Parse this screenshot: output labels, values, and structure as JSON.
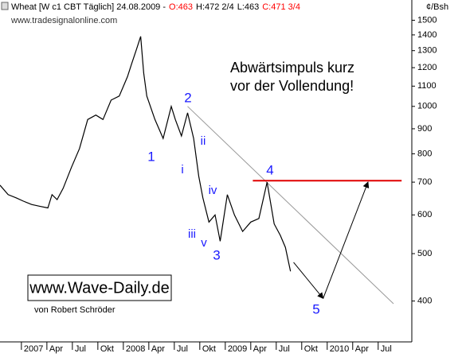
{
  "chart_data": {
    "type": "line",
    "log_scale": true,
    "header": [
      "Wheat [W c1 CBT  Täglich] 24.08.2009 -",
      "O:463",
      "H:472 2/4",
      "L:463",
      "C:471 3/4"
    ],
    "header_colors": [
      "#000000",
      "#ff0000",
      "#000000",
      "#000000",
      "#ff0000"
    ],
    "source": "www.tradesignalonline.com",
    "unit": "¢/Bsh",
    "annotation": [
      "Abwärtsimpuls kurz",
      "vor der Vollendung!"
    ],
    "website": "www.Wave-Daily.de",
    "author": "von Robert Schröder",
    "wave_labels": [
      "1",
      "2",
      "3",
      "4",
      "5",
      "i",
      "ii",
      "iii",
      "iv",
      "v"
    ],
    "wave_color": "#1a1aff",
    "series": [
      {
        "name": "Wheat",
        "color": "#000000",
        "x": [
          2006.79,
          2006.87,
          2006.95,
          2007.02,
          2007.1,
          2007.18,
          2007.26,
          2007.3,
          2007.35,
          2007.41,
          2007.49,
          2007.57,
          2007.65,
          2007.73,
          2007.8,
          2007.88,
          2007.96,
          2008.04,
          2008.08,
          2008.13,
          2008.17,
          2008.2,
          2008.23,
          2008.31,
          2008.39,
          2008.47,
          2008.51,
          2008.57,
          2008.63,
          2008.69,
          2008.74,
          2008.78,
          2008.84,
          2008.9,
          2008.95,
          2009.02,
          2009.09,
          2009.17,
          2009.25,
          2009.33,
          2009.41,
          2009.48,
          2009.54,
          2009.59,
          2009.64
        ],
        "values": [
          690,
          660,
          650,
          640,
          630,
          625,
          620,
          660,
          645,
          680,
          750,
          820,
          940,
          960,
          940,
          1030,
          1050,
          1150,
          1220,
          1310,
          1390,
          1170,
          1050,
          940,
          860,
          1000,
          940,
          870,
          970,
          860,
          720,
          650,
          580,
          600,
          530,
          660,
          600,
          555,
          580,
          590,
          700,
          575,
          545,
          515,
          460
        ]
      }
    ],
    "resistance": {
      "color": "#e00000",
      "x": [
        2009.27,
        2010.73
      ],
      "values": [
        705,
        705
      ]
    },
    "trendline": {
      "color": "#999999",
      "x": [
        2008.63,
        2010.65
      ],
      "values": [
        1000,
        395
      ]
    },
    "projection": {
      "color": "#000000",
      "x": [
        2009.67,
        2009.96,
        2010.4
      ],
      "values": [
        480,
        405,
        700
      ]
    },
    "xlim": [
      2006.79,
      2010.83
    ],
    "xticks": [
      {
        "value": 2007,
        "label": "2007"
      },
      {
        "value": 2007.25,
        "label": "Apr"
      },
      {
        "value": 2007.5,
        "label": "Jul"
      },
      {
        "value": 2007.75,
        "label": "Okt"
      },
      {
        "value": 2008,
        "label": "2008"
      },
      {
        "value": 2008.25,
        "label": "Apr"
      },
      {
        "value": 2008.5,
        "label": "Jul"
      },
      {
        "value": 2008.75,
        "label": "Okt"
      },
      {
        "value": 2009,
        "label": "2009"
      },
      {
        "value": 2009.25,
        "label": "Apr"
      },
      {
        "value": 2009.5,
        "label": "Jul"
      },
      {
        "value": 2009.75,
        "label": "Okt"
      },
      {
        "value": 2010,
        "label": "2010"
      },
      {
        "value": 2010.25,
        "label": "Apr"
      },
      {
        "value": 2010.5,
        "label": "Jul"
      }
    ],
    "ylim": [
      330,
      1650
    ],
    "yticks": [
      400,
      500,
      600,
      700,
      800,
      900,
      1000,
      1100,
      1200,
      1300,
      1400,
      1500
    ]
  }
}
